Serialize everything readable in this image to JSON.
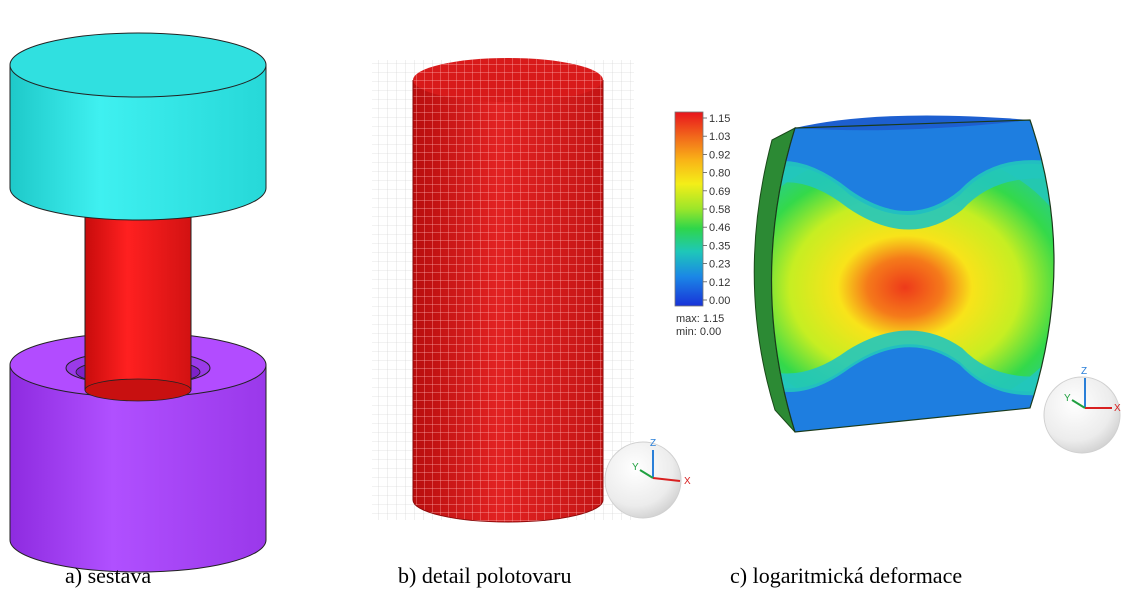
{
  "panels": [
    {
      "caption": "a) sestava"
    },
    {
      "caption": "b) detail polotovaru"
    },
    {
      "caption": "c) logaritmická deformace"
    }
  ],
  "legend": {
    "ticks": [
      "1.15",
      "1.03",
      "0.92",
      "0.80",
      "0.69",
      "0.58",
      "0.46",
      "0.35",
      "0.23",
      "0.12",
      "0.00"
    ],
    "max_label": "max: 1.15",
    "min_label": "min: 0.00",
    "gradient_colors": [
      "#e8141c",
      "#f26a1b",
      "#f9b417",
      "#f4ee18",
      "#9be62a",
      "#2fd64a",
      "#1ec7b9",
      "#1b86e6",
      "#1832d8"
    ]
  },
  "axes_labels": {
    "x": "X",
    "y": "Y",
    "z": "Z"
  },
  "colors": {
    "top_die": "#33e6e6",
    "billet": "#ee1c1c",
    "bottom_die": "#a040f0",
    "mesh": "#d01818"
  }
}
